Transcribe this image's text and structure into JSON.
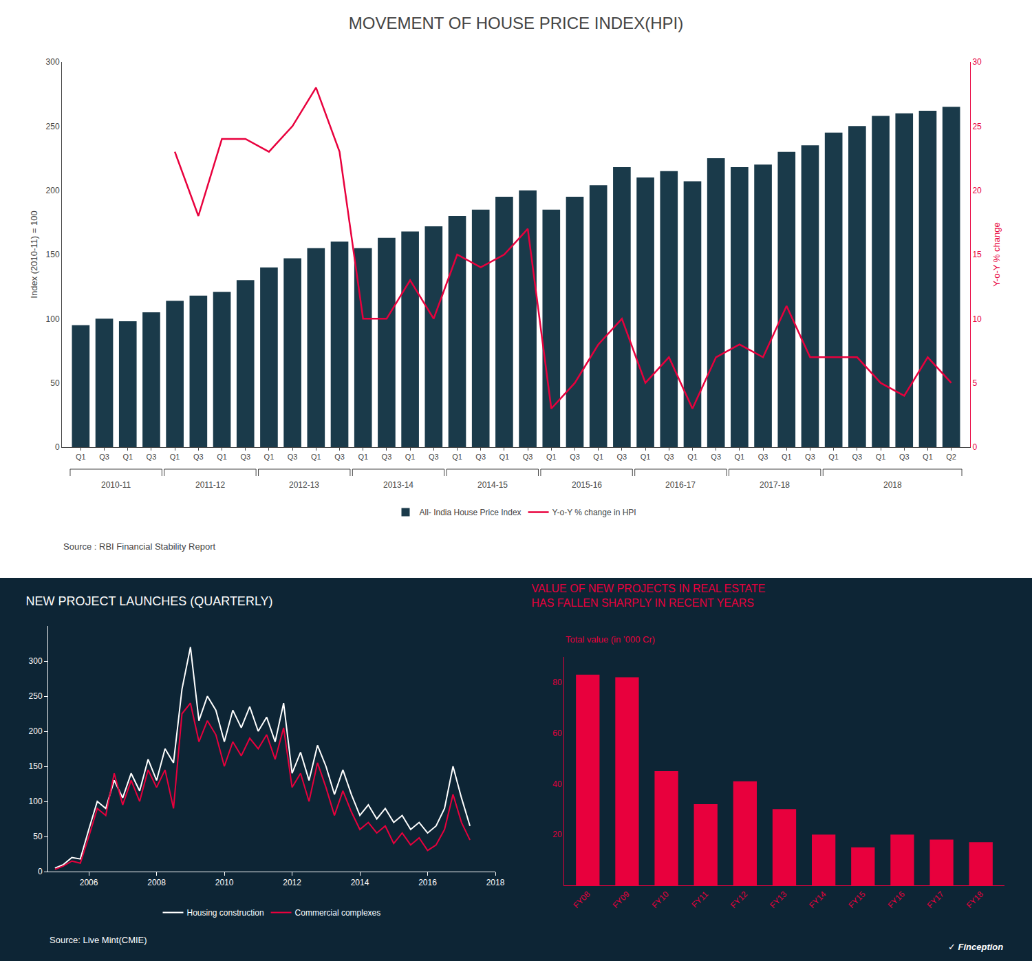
{
  "chart_data": [
    {
      "type": "bar",
      "title": "MOVEMENT OF HOUSE PRICE INDEX(HPI)",
      "categories": [
        "Q1",
        "Q3",
        "Q1",
        "Q3",
        "Q1",
        "Q3",
        "Q1",
        "Q3",
        "Q1",
        "Q3",
        "Q1",
        "Q3",
        "Q1",
        "Q3",
        "Q1",
        "Q3",
        "Q1",
        "Q3",
        "Q1",
        "Q3",
        "Q1",
        "Q3",
        "Q1",
        "Q3",
        "Q1",
        "Q3",
        "Q1",
        "Q3",
        "Q1",
        "Q3",
        "Q1",
        "Q3",
        "Q1",
        "Q3",
        "Q1",
        "Q3",
        "Q1",
        "Q2"
      ],
      "series": [
        {
          "name": "All- India House Price Index",
          "type": "bar",
          "color": "#1a3a4a",
          "values": [
            95,
            100,
            98,
            105,
            114,
            118,
            121,
            130,
            140,
            147,
            155,
            160,
            155,
            163,
            168,
            172,
            180,
            185,
            195,
            200,
            185,
            195,
            204,
            218,
            210,
            215,
            207,
            225,
            218,
            220,
            230,
            235,
            245,
            250,
            258,
            260,
            262,
            265
          ]
        },
        {
          "name": "Y-o-Y % change in HPI",
          "type": "line",
          "color": "#e8003d",
          "axis": "y2",
          "values": [
            null,
            null,
            null,
            null,
            23,
            18,
            24,
            24,
            23,
            25,
            28,
            23,
            10,
            10,
            13,
            10,
            15,
            14,
            15,
            17,
            3,
            5,
            8,
            10,
            5,
            7,
            3,
            7,
            8,
            7,
            11,
            7,
            7,
            7,
            5,
            4,
            7,
            5
          ]
        }
      ],
      "ylabel": "Index (2010-11) = 100",
      "y2label": "Y-o-Y % change",
      "ylim": [
        0,
        300
      ],
      "yticks": [
        0,
        50,
        100,
        150,
        200,
        250,
        300
      ],
      "y2lim": [
        0,
        30
      ],
      "y2ticks": [
        0,
        5,
        10,
        15,
        20,
        25,
        30
      ],
      "annotations": [
        {
          "text": "2010-11",
          "start": 0,
          "end": 3
        },
        {
          "text": "2011-12",
          "start": 4,
          "end": 7
        },
        {
          "text": "2012-13",
          "start": 8,
          "end": 11
        },
        {
          "text": "2013-14",
          "start": 12,
          "end": 15
        },
        {
          "text": "2014-15",
          "start": 16,
          "end": 19
        },
        {
          "text": "2015-16",
          "start": 20,
          "end": 23
        },
        {
          "text": "2016-17",
          "start": 24,
          "end": 27
        },
        {
          "text": "2017-18",
          "start": 28,
          "end": 31
        },
        {
          "text": "2018",
          "start": 32,
          "end": 37
        }
      ],
      "source": "Source : RBI Financial Stability Report",
      "legend": "bottom",
      "grid": false
    },
    {
      "type": "line",
      "title": "NEW PROJECT LAUNCHES (QUARTERLY)",
      "x": [
        2005.0,
        2005.25,
        2005.5,
        2005.75,
        2006.0,
        2006.25,
        2006.5,
        2006.75,
        2007.0,
        2007.25,
        2007.5,
        2007.75,
        2008.0,
        2008.25,
        2008.5,
        2008.75,
        2009.0,
        2009.25,
        2009.5,
        2009.75,
        2010.0,
        2010.25,
        2010.5,
        2010.75,
        2011.0,
        2011.25,
        2011.5,
        2011.75,
        2012.0,
        2012.25,
        2012.5,
        2012.75,
        2013.0,
        2013.25,
        2013.5,
        2013.75,
        2014.0,
        2014.25,
        2014.5,
        2014.75,
        2015.0,
        2015.25,
        2015.5,
        2015.75,
        2016.0,
        2016.25,
        2016.5,
        2016.75,
        2017.0,
        2017.25
      ],
      "series": [
        {
          "name": "Housing construction",
          "color": "white",
          "values": [
            5,
            10,
            20,
            18,
            60,
            100,
            90,
            130,
            105,
            140,
            115,
            160,
            130,
            175,
            155,
            260,
            320,
            215,
            250,
            230,
            185,
            230,
            205,
            235,
            200,
            220,
            185,
            240,
            140,
            170,
            130,
            180,
            150,
            110,
            145,
            110,
            80,
            95,
            75,
            90,
            70,
            80,
            60,
            70,
            55,
            65,
            90,
            150,
            105,
            65
          ]
        },
        {
          "name": "Commercial complexes",
          "color": "#e8003d",
          "values": [
            3,
            8,
            15,
            12,
            50,
            90,
            80,
            140,
            95,
            130,
            100,
            145,
            120,
            145,
            90,
            225,
            240,
            185,
            215,
            195,
            150,
            185,
            165,
            190,
            175,
            195,
            160,
            205,
            120,
            140,
            100,
            155,
            120,
            80,
            115,
            85,
            60,
            70,
            55,
            65,
            40,
            55,
            38,
            48,
            30,
            38,
            60,
            110,
            70,
            45
          ]
        }
      ],
      "xlim": [
        2004.8,
        2018
      ],
      "xticks": [
        2006,
        2008,
        2010,
        2012,
        2014,
        2016,
        2018
      ],
      "ylim": [
        0,
        350
      ],
      "yticks": [
        0,
        50,
        100,
        150,
        200,
        250,
        300
      ],
      "legend": "bottom",
      "grid": false,
      "source": "Source: Live Mint(CMIE)"
    },
    {
      "type": "bar",
      "title": "VALUE OF NEW PROJECTS IN REAL ESTATE\nHAS FALLEN SHARPLY IN RECENT YEARS",
      "subtitle": "Total value (in ’000 Cr)",
      "categories": [
        "FY08",
        "FY09",
        "FY10",
        "FY11",
        "FY12",
        "FY13",
        "FY14",
        "FY15",
        "FY16",
        "FY17",
        "FY18"
      ],
      "values": [
        83,
        82,
        45,
        32,
        41,
        30,
        20,
        15,
        20,
        18,
        17
      ],
      "color": "#e8003d",
      "ylim": [
        0,
        90
      ],
      "yticks": [
        20,
        40,
        60,
        80
      ],
      "grid": false,
      "credit": "✓ Finception"
    }
  ]
}
